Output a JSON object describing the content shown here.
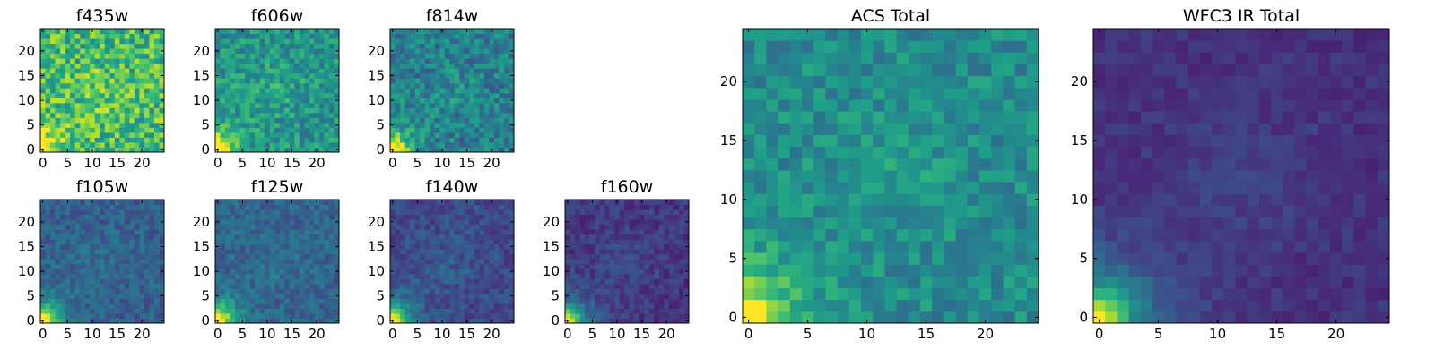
{
  "figure": {
    "panels": [
      {
        "id": "f435w",
        "title": "f435w",
        "type": "heatmap",
        "grid": [
          25,
          25
        ],
        "xticks": [
          "0",
          "5",
          "10",
          "15",
          "20"
        ],
        "yticks": [
          "0",
          "5",
          "10",
          "15",
          "20"
        ],
        "xlim": [
          0,
          25
        ],
        "ylim": [
          0,
          25
        ],
        "level": 0.68,
        "core": 0.3,
        "noise": 0.22
      },
      {
        "id": "f606w",
        "title": "f606w",
        "type": "heatmap",
        "grid": [
          25,
          25
        ],
        "xticks": [
          "0",
          "5",
          "10",
          "15",
          "20"
        ],
        "yticks": [
          "0",
          "5",
          "10",
          "15",
          "20"
        ],
        "xlim": [
          0,
          25
        ],
        "ylim": [
          0,
          25
        ],
        "level": 0.52,
        "core": 0.55,
        "noise": 0.16
      },
      {
        "id": "f814w",
        "title": "f814w",
        "type": "heatmap",
        "grid": [
          25,
          25
        ],
        "xticks": [
          "0",
          "5",
          "10",
          "15",
          "20"
        ],
        "yticks": [
          "0",
          "5",
          "10",
          "15",
          "20"
        ],
        "xlim": [
          0,
          25
        ],
        "ylim": [
          0,
          25
        ],
        "level": 0.42,
        "core": 0.75,
        "noise": 0.16
      },
      {
        "id": "f105w",
        "title": "f105w",
        "type": "heatmap",
        "grid": [
          25,
          25
        ],
        "xticks": [
          "0",
          "5",
          "10",
          "15",
          "20"
        ],
        "yticks": [
          "0",
          "5",
          "10",
          "15",
          "20"
        ],
        "xlim": [
          0,
          25
        ],
        "ylim": [
          0,
          25
        ],
        "level": 0.3,
        "core": 0.85,
        "noise": 0.1
      },
      {
        "id": "f125w",
        "title": "f125w",
        "type": "heatmap",
        "grid": [
          25,
          25
        ],
        "xticks": [
          "0",
          "5",
          "10",
          "15",
          "20"
        ],
        "yticks": [
          "0",
          "5",
          "10",
          "15",
          "20"
        ],
        "xlim": [
          0,
          25
        ],
        "ylim": [
          0,
          25
        ],
        "level": 0.32,
        "core": 0.85,
        "noise": 0.1
      },
      {
        "id": "f140w",
        "title": "f140w",
        "type": "heatmap",
        "grid": [
          25,
          25
        ],
        "xticks": [
          "0",
          "5",
          "10",
          "15",
          "20"
        ],
        "yticks": [
          "0",
          "5",
          "10",
          "15",
          "20"
        ],
        "xlim": [
          0,
          25
        ],
        "ylim": [
          0,
          25
        ],
        "level": 0.22,
        "core": 0.9,
        "noise": 0.09
      },
      {
        "id": "f160w",
        "title": "f160w",
        "type": "heatmap",
        "grid": [
          25,
          25
        ],
        "xticks": [
          "0",
          "5",
          "10",
          "15",
          "20"
        ],
        "yticks": [
          "0",
          "5",
          "10",
          "15",
          "20"
        ],
        "xlim": [
          0,
          25
        ],
        "ylim": [
          0,
          25
        ],
        "level": 0.16,
        "core": 0.95,
        "noise": 0.08
      },
      {
        "id": "acs-total",
        "title": "ACS Total",
        "type": "heatmap",
        "grid": [
          25,
          25
        ],
        "xticks": [
          "0",
          "5",
          "10",
          "15",
          "20"
        ],
        "yticks": [
          "0",
          "5",
          "10",
          "15",
          "20"
        ],
        "xlim": [
          0,
          25
        ],
        "ylim": [
          0,
          25
        ],
        "level": 0.48,
        "core": 0.55,
        "noise": 0.12
      },
      {
        "id": "wfc3-ir-total",
        "title": "WFC3 IR Total",
        "type": "heatmap",
        "grid": [
          25,
          25
        ],
        "xticks": [
          "0",
          "5",
          "10",
          "15",
          "20"
        ],
        "yticks": [
          "0",
          "5",
          "10",
          "15",
          "20"
        ],
        "xlim": [
          0,
          25
        ],
        "ylim": [
          0,
          25
        ],
        "level": 0.14,
        "core": 0.95,
        "noise": 0.05
      }
    ]
  },
  "chart_data": [
    {
      "type": "heatmap",
      "title": "f435w",
      "xlim": [
        0,
        25
      ],
      "ylim": [
        0,
        25
      ],
      "colormap": "viridis",
      "mean_level": 0.68,
      "bright_corner": "bottom-left"
    },
    {
      "type": "heatmap",
      "title": "f606w",
      "xlim": [
        0,
        25
      ],
      "ylim": [
        0,
        25
      ],
      "colormap": "viridis",
      "mean_level": 0.52,
      "bright_corner": "bottom-left"
    },
    {
      "type": "heatmap",
      "title": "f814w",
      "xlim": [
        0,
        25
      ],
      "ylim": [
        0,
        25
      ],
      "colormap": "viridis",
      "mean_level": 0.42,
      "bright_corner": "bottom-left"
    },
    {
      "type": "heatmap",
      "title": "f105w",
      "xlim": [
        0,
        25
      ],
      "ylim": [
        0,
        25
      ],
      "colormap": "viridis",
      "mean_level": 0.3,
      "bright_corner": "bottom-left"
    },
    {
      "type": "heatmap",
      "title": "f125w",
      "xlim": [
        0,
        25
      ],
      "ylim": [
        0,
        25
      ],
      "colormap": "viridis",
      "mean_level": 0.32,
      "bright_corner": "bottom-left"
    },
    {
      "type": "heatmap",
      "title": "f140w",
      "xlim": [
        0,
        25
      ],
      "ylim": [
        0,
        25
      ],
      "colormap": "viridis",
      "mean_level": 0.22,
      "bright_corner": "bottom-left"
    },
    {
      "type": "heatmap",
      "title": "f160w",
      "xlim": [
        0,
        25
      ],
      "ylim": [
        0,
        25
      ],
      "colormap": "viridis",
      "mean_level": 0.16,
      "bright_corner": "bottom-left"
    },
    {
      "type": "heatmap",
      "title": "ACS Total",
      "xlim": [
        0,
        25
      ],
      "ylim": [
        0,
        25
      ],
      "colormap": "viridis",
      "mean_level": 0.48,
      "bright_corner": "bottom-left"
    },
    {
      "type": "heatmap",
      "title": "WFC3 IR Total",
      "xlim": [
        0,
        25
      ],
      "ylim": [
        0,
        25
      ],
      "colormap": "viridis",
      "mean_level": 0.14,
      "bright_corner": "bottom-left"
    }
  ]
}
